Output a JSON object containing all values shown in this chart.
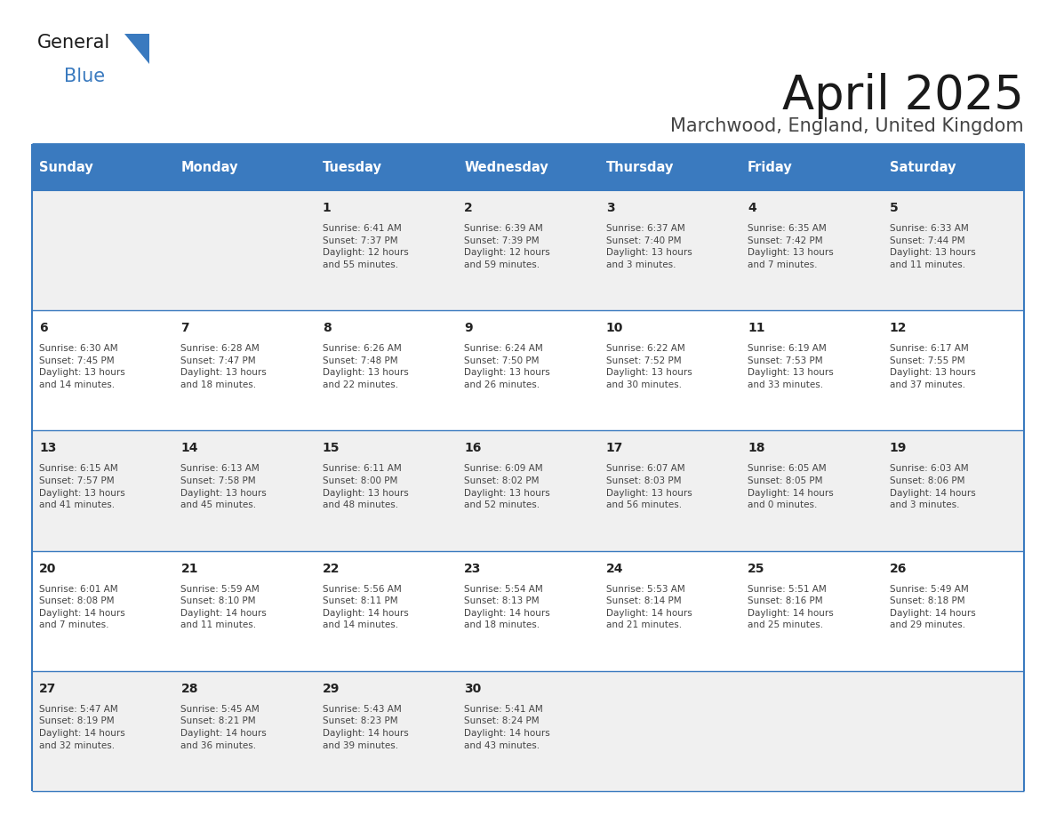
{
  "title": "April 2025",
  "subtitle": "Marchwood, England, United Kingdom",
  "header_color": "#3a7abf",
  "header_text_color": "#ffffff",
  "cell_bg_even": "#f0f0f0",
  "cell_bg_odd": "#ffffff",
  "border_color": "#3a7abf",
  "day_names": [
    "Sunday",
    "Monday",
    "Tuesday",
    "Wednesday",
    "Thursday",
    "Friday",
    "Saturday"
  ],
  "weeks": [
    [
      {
        "day": "",
        "info": ""
      },
      {
        "day": "",
        "info": ""
      },
      {
        "day": "1",
        "info": "Sunrise: 6:41 AM\nSunset: 7:37 PM\nDaylight: 12 hours\nand 55 minutes."
      },
      {
        "day": "2",
        "info": "Sunrise: 6:39 AM\nSunset: 7:39 PM\nDaylight: 12 hours\nand 59 minutes."
      },
      {
        "day": "3",
        "info": "Sunrise: 6:37 AM\nSunset: 7:40 PM\nDaylight: 13 hours\nand 3 minutes."
      },
      {
        "day": "4",
        "info": "Sunrise: 6:35 AM\nSunset: 7:42 PM\nDaylight: 13 hours\nand 7 minutes."
      },
      {
        "day": "5",
        "info": "Sunrise: 6:33 AM\nSunset: 7:44 PM\nDaylight: 13 hours\nand 11 minutes."
      }
    ],
    [
      {
        "day": "6",
        "info": "Sunrise: 6:30 AM\nSunset: 7:45 PM\nDaylight: 13 hours\nand 14 minutes."
      },
      {
        "day": "7",
        "info": "Sunrise: 6:28 AM\nSunset: 7:47 PM\nDaylight: 13 hours\nand 18 minutes."
      },
      {
        "day": "8",
        "info": "Sunrise: 6:26 AM\nSunset: 7:48 PM\nDaylight: 13 hours\nand 22 minutes."
      },
      {
        "day": "9",
        "info": "Sunrise: 6:24 AM\nSunset: 7:50 PM\nDaylight: 13 hours\nand 26 minutes."
      },
      {
        "day": "10",
        "info": "Sunrise: 6:22 AM\nSunset: 7:52 PM\nDaylight: 13 hours\nand 30 minutes."
      },
      {
        "day": "11",
        "info": "Sunrise: 6:19 AM\nSunset: 7:53 PM\nDaylight: 13 hours\nand 33 minutes."
      },
      {
        "day": "12",
        "info": "Sunrise: 6:17 AM\nSunset: 7:55 PM\nDaylight: 13 hours\nand 37 minutes."
      }
    ],
    [
      {
        "day": "13",
        "info": "Sunrise: 6:15 AM\nSunset: 7:57 PM\nDaylight: 13 hours\nand 41 minutes."
      },
      {
        "day": "14",
        "info": "Sunrise: 6:13 AM\nSunset: 7:58 PM\nDaylight: 13 hours\nand 45 minutes."
      },
      {
        "day": "15",
        "info": "Sunrise: 6:11 AM\nSunset: 8:00 PM\nDaylight: 13 hours\nand 48 minutes."
      },
      {
        "day": "16",
        "info": "Sunrise: 6:09 AM\nSunset: 8:02 PM\nDaylight: 13 hours\nand 52 minutes."
      },
      {
        "day": "17",
        "info": "Sunrise: 6:07 AM\nSunset: 8:03 PM\nDaylight: 13 hours\nand 56 minutes."
      },
      {
        "day": "18",
        "info": "Sunrise: 6:05 AM\nSunset: 8:05 PM\nDaylight: 14 hours\nand 0 minutes."
      },
      {
        "day": "19",
        "info": "Sunrise: 6:03 AM\nSunset: 8:06 PM\nDaylight: 14 hours\nand 3 minutes."
      }
    ],
    [
      {
        "day": "20",
        "info": "Sunrise: 6:01 AM\nSunset: 8:08 PM\nDaylight: 14 hours\nand 7 minutes."
      },
      {
        "day": "21",
        "info": "Sunrise: 5:59 AM\nSunset: 8:10 PM\nDaylight: 14 hours\nand 11 minutes."
      },
      {
        "day": "22",
        "info": "Sunrise: 5:56 AM\nSunset: 8:11 PM\nDaylight: 14 hours\nand 14 minutes."
      },
      {
        "day": "23",
        "info": "Sunrise: 5:54 AM\nSunset: 8:13 PM\nDaylight: 14 hours\nand 18 minutes."
      },
      {
        "day": "24",
        "info": "Sunrise: 5:53 AM\nSunset: 8:14 PM\nDaylight: 14 hours\nand 21 minutes."
      },
      {
        "day": "25",
        "info": "Sunrise: 5:51 AM\nSunset: 8:16 PM\nDaylight: 14 hours\nand 25 minutes."
      },
      {
        "day": "26",
        "info": "Sunrise: 5:49 AM\nSunset: 8:18 PM\nDaylight: 14 hours\nand 29 minutes."
      }
    ],
    [
      {
        "day": "27",
        "info": "Sunrise: 5:47 AM\nSunset: 8:19 PM\nDaylight: 14 hours\nand 32 minutes."
      },
      {
        "day": "28",
        "info": "Sunrise: 5:45 AM\nSunset: 8:21 PM\nDaylight: 14 hours\nand 36 minutes."
      },
      {
        "day": "29",
        "info": "Sunrise: 5:43 AM\nSunset: 8:23 PM\nDaylight: 14 hours\nand 39 minutes."
      },
      {
        "day": "30",
        "info": "Sunrise: 5:41 AM\nSunset: 8:24 PM\nDaylight: 14 hours\nand 43 minutes."
      },
      {
        "day": "",
        "info": ""
      },
      {
        "day": "",
        "info": ""
      },
      {
        "day": "",
        "info": ""
      }
    ]
  ],
  "logo_general_color": "#1a1a1a",
  "logo_blue_color": "#3a7abf",
  "logo_triangle_color": "#3a7abf",
  "title_color": "#1a1a1a",
  "subtitle_color": "#444444",
  "day_num_color": "#222222",
  "info_text_color": "#444444"
}
